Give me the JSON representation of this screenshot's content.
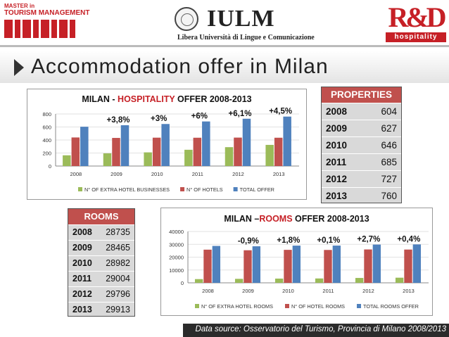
{
  "header": {
    "logo_left_line1": "MASTER in",
    "logo_left_line2": "TOURISM MANAGEMENT",
    "logo_center_name": "IULM",
    "logo_center_sub": "Libera Università di Lingue e Comunicazione",
    "logo_right_mark": "R&D",
    "logo_right_sub": "hospitality"
  },
  "page_title": "Accommodation offer in Milan",
  "hospitality_chart": {
    "title_prefix": "MILAN - ",
    "title_highlight": "HOSPITALITY",
    "title_suffix": " OFFER 2008-2013",
    "yticks": [
      "0",
      "200",
      "400",
      "600",
      "800"
    ],
    "growth_labels": [
      "+3,8%",
      "+3%",
      "+6%",
      "+6,1%",
      "+4,5%"
    ]
  },
  "rooms_chart": {
    "title_prefix": "MILAN –",
    "title_highlight": "ROOMS",
    "title_suffix": " OFFER 2008-2013",
    "yticks": [
      "0",
      "10000",
      "20000",
      "30000",
      "40000"
    ],
    "growth_labels": [
      "-0,9%",
      "+1,8%",
      "+0,1%",
      "+2,7%",
      "+0,4%"
    ]
  },
  "chart_data": [
    {
      "type": "bar",
      "title": "MILAN - HOSPITALITY OFFER 2008-2013",
      "categories": [
        "2008",
        "2009",
        "2010",
        "2011",
        "2012",
        "2013"
      ],
      "series": [
        {
          "name": "N° OF EXTRA HOTEL BUSINESSES",
          "color": "#9bbb59",
          "values": [
            165,
            195,
            210,
            250,
            290,
            325
          ]
        },
        {
          "name": "N° OF HOTELS",
          "color": "#c0504d",
          "values": [
            439,
            432,
            436,
            435,
            437,
            435
          ]
        },
        {
          "name": "TOTAL OFFER",
          "color": "#4f81bd",
          "values": [
            604,
            627,
            646,
            685,
            727,
            760
          ]
        }
      ],
      "ylim": [
        0,
        800
      ],
      "legend": "bottom"
    },
    {
      "type": "bar",
      "title": "MILAN –ROOMS OFFER 2008-2013",
      "categories": [
        "2008",
        "2009",
        "2010",
        "2011",
        "2012",
        "2013"
      ],
      "series": [
        {
          "name": "N° OF EXTRA HOTEL ROOMS",
          "color": "#9bbb59",
          "values": [
            2900,
            3100,
            3300,
            3400,
            3800,
            4000
          ]
        },
        {
          "name": "N° OF HOTEL ROOMS",
          "color": "#c0504d",
          "values": [
            25835,
            25365,
            25682,
            25604,
            25996,
            25913
          ]
        },
        {
          "name": "TOTAL ROOMS OFFER",
          "color": "#4f81bd",
          "values": [
            28735,
            28465,
            28982,
            29004,
            29796,
            29913
          ]
        }
      ],
      "ylim": [
        0,
        40000
      ],
      "legend": "bottom"
    }
  ],
  "properties_table": {
    "title": "PROPERTIES",
    "rows": [
      {
        "year": "2008",
        "value": "604"
      },
      {
        "year": "2009",
        "value": "627"
      },
      {
        "year": "2010",
        "value": "646"
      },
      {
        "year": "2011",
        "value": "685"
      },
      {
        "year": "2012",
        "value": "727"
      },
      {
        "year": "2013",
        "value": "760"
      }
    ]
  },
  "rooms_table": {
    "title": "ROOMS",
    "rows": [
      {
        "year": "2008",
        "value": "28735"
      },
      {
        "year": "2009",
        "value": "28465"
      },
      {
        "year": "2010",
        "value": "28982"
      },
      {
        "year": "2011",
        "value": "29004"
      },
      {
        "year": "2012",
        "value": "29796"
      },
      {
        "year": "2013",
        "value": "29913"
      }
    ]
  },
  "source": "Data source: Osservatorio del Turismo, Provincia di Milano 2008/2013",
  "colors": {
    "accent": "#c62026",
    "green": "#9bbb59",
    "red": "#c0504d",
    "blue": "#4f81bd"
  }
}
